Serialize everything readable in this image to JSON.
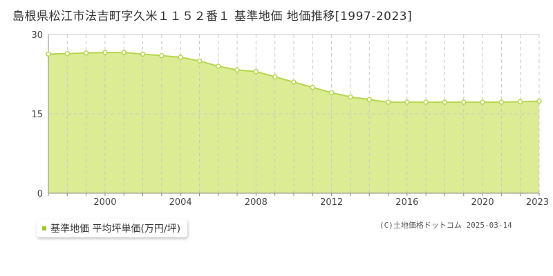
{
  "title": "島根県松江市法吉町字久米１１５２番１ 基準地価 地価推移[1997-2023]",
  "legend": {
    "label": "基準地価 平均坪単価(万円/坪)",
    "color": "#a0c820"
  },
  "copyright": "(C)土地価格ドットコム 2025-03-14",
  "colors": {
    "area": "#dcec94",
    "line": "#b5d64c",
    "marker_stroke": "#b5d64c",
    "marker_fill": "#ffffff",
    "grid": "#c8c8c8",
    "axis": "#888888"
  },
  "chart_data": {
    "type": "area",
    "title": "島根県松江市法吉町字久米１１５２番１ 基準地価 地価推移[1997-2023]",
    "xlabel": "",
    "ylabel": "",
    "xlim": [
      1997,
      2023
    ],
    "ylim": [
      0,
      30
    ],
    "y_ticks": [
      "0",
      "15",
      "30"
    ],
    "x_ticks": [
      "2000",
      "2004",
      "2008",
      "2012",
      "2016",
      "2020",
      "2023"
    ],
    "grid": true,
    "legend_position": "bottom-left",
    "series": [
      {
        "name": "基準地価 平均坪単価(万円/坪)",
        "x": [
          1997,
          1998,
          1999,
          2000,
          2001,
          2002,
          2003,
          2004,
          2005,
          2006,
          2007,
          2008,
          2009,
          2010,
          2011,
          2012,
          2013,
          2014,
          2015,
          2016,
          2017,
          2018,
          2019,
          2020,
          2021,
          2022,
          2023
        ],
        "values": [
          26.3,
          26.4,
          26.5,
          26.6,
          26.6,
          26.3,
          26.0,
          25.7,
          25.0,
          24.0,
          23.3,
          23.0,
          22.0,
          21.0,
          20.0,
          19.0,
          18.2,
          17.7,
          17.2,
          17.2,
          17.2,
          17.2,
          17.2,
          17.2,
          17.2,
          17.3,
          17.4
        ]
      }
    ]
  }
}
